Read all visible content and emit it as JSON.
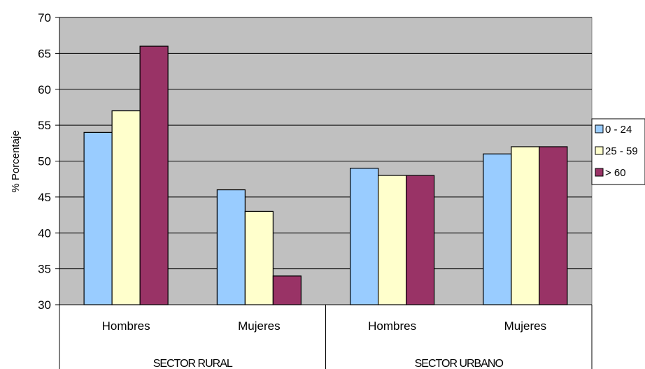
{
  "chart_data": {
    "type": "bar",
    "ylabel": "% Porcentaje",
    "ylim": [
      30,
      70
    ],
    "yticks": [
      30,
      35,
      40,
      45,
      50,
      55,
      60,
      65,
      70
    ],
    "grid": true,
    "legend_position": "right",
    "groups": [
      {
        "label": "SECTOR RURAL",
        "categories": [
          "Hombres",
          "Mujeres"
        ]
      },
      {
        "label": "SECTOR URBANO",
        "categories": [
          "Hombres",
          "Mujeres"
        ]
      }
    ],
    "categories": [
      "Hombres",
      "Mujeres",
      "Hombres",
      "Mujeres"
    ],
    "series": [
      {
        "name": "0 - 24",
        "color": "#99CCFF",
        "values": [
          54,
          46,
          49,
          51
        ]
      },
      {
        "name": "25 - 59",
        "color": "#FFFFCC",
        "values": [
          57,
          43,
          48,
          52
        ]
      },
      {
        "name": "> 60",
        "color": "#993366",
        "values": [
          66,
          34,
          48,
          52
        ]
      }
    ],
    "plot_background": "#C0C0C0"
  }
}
